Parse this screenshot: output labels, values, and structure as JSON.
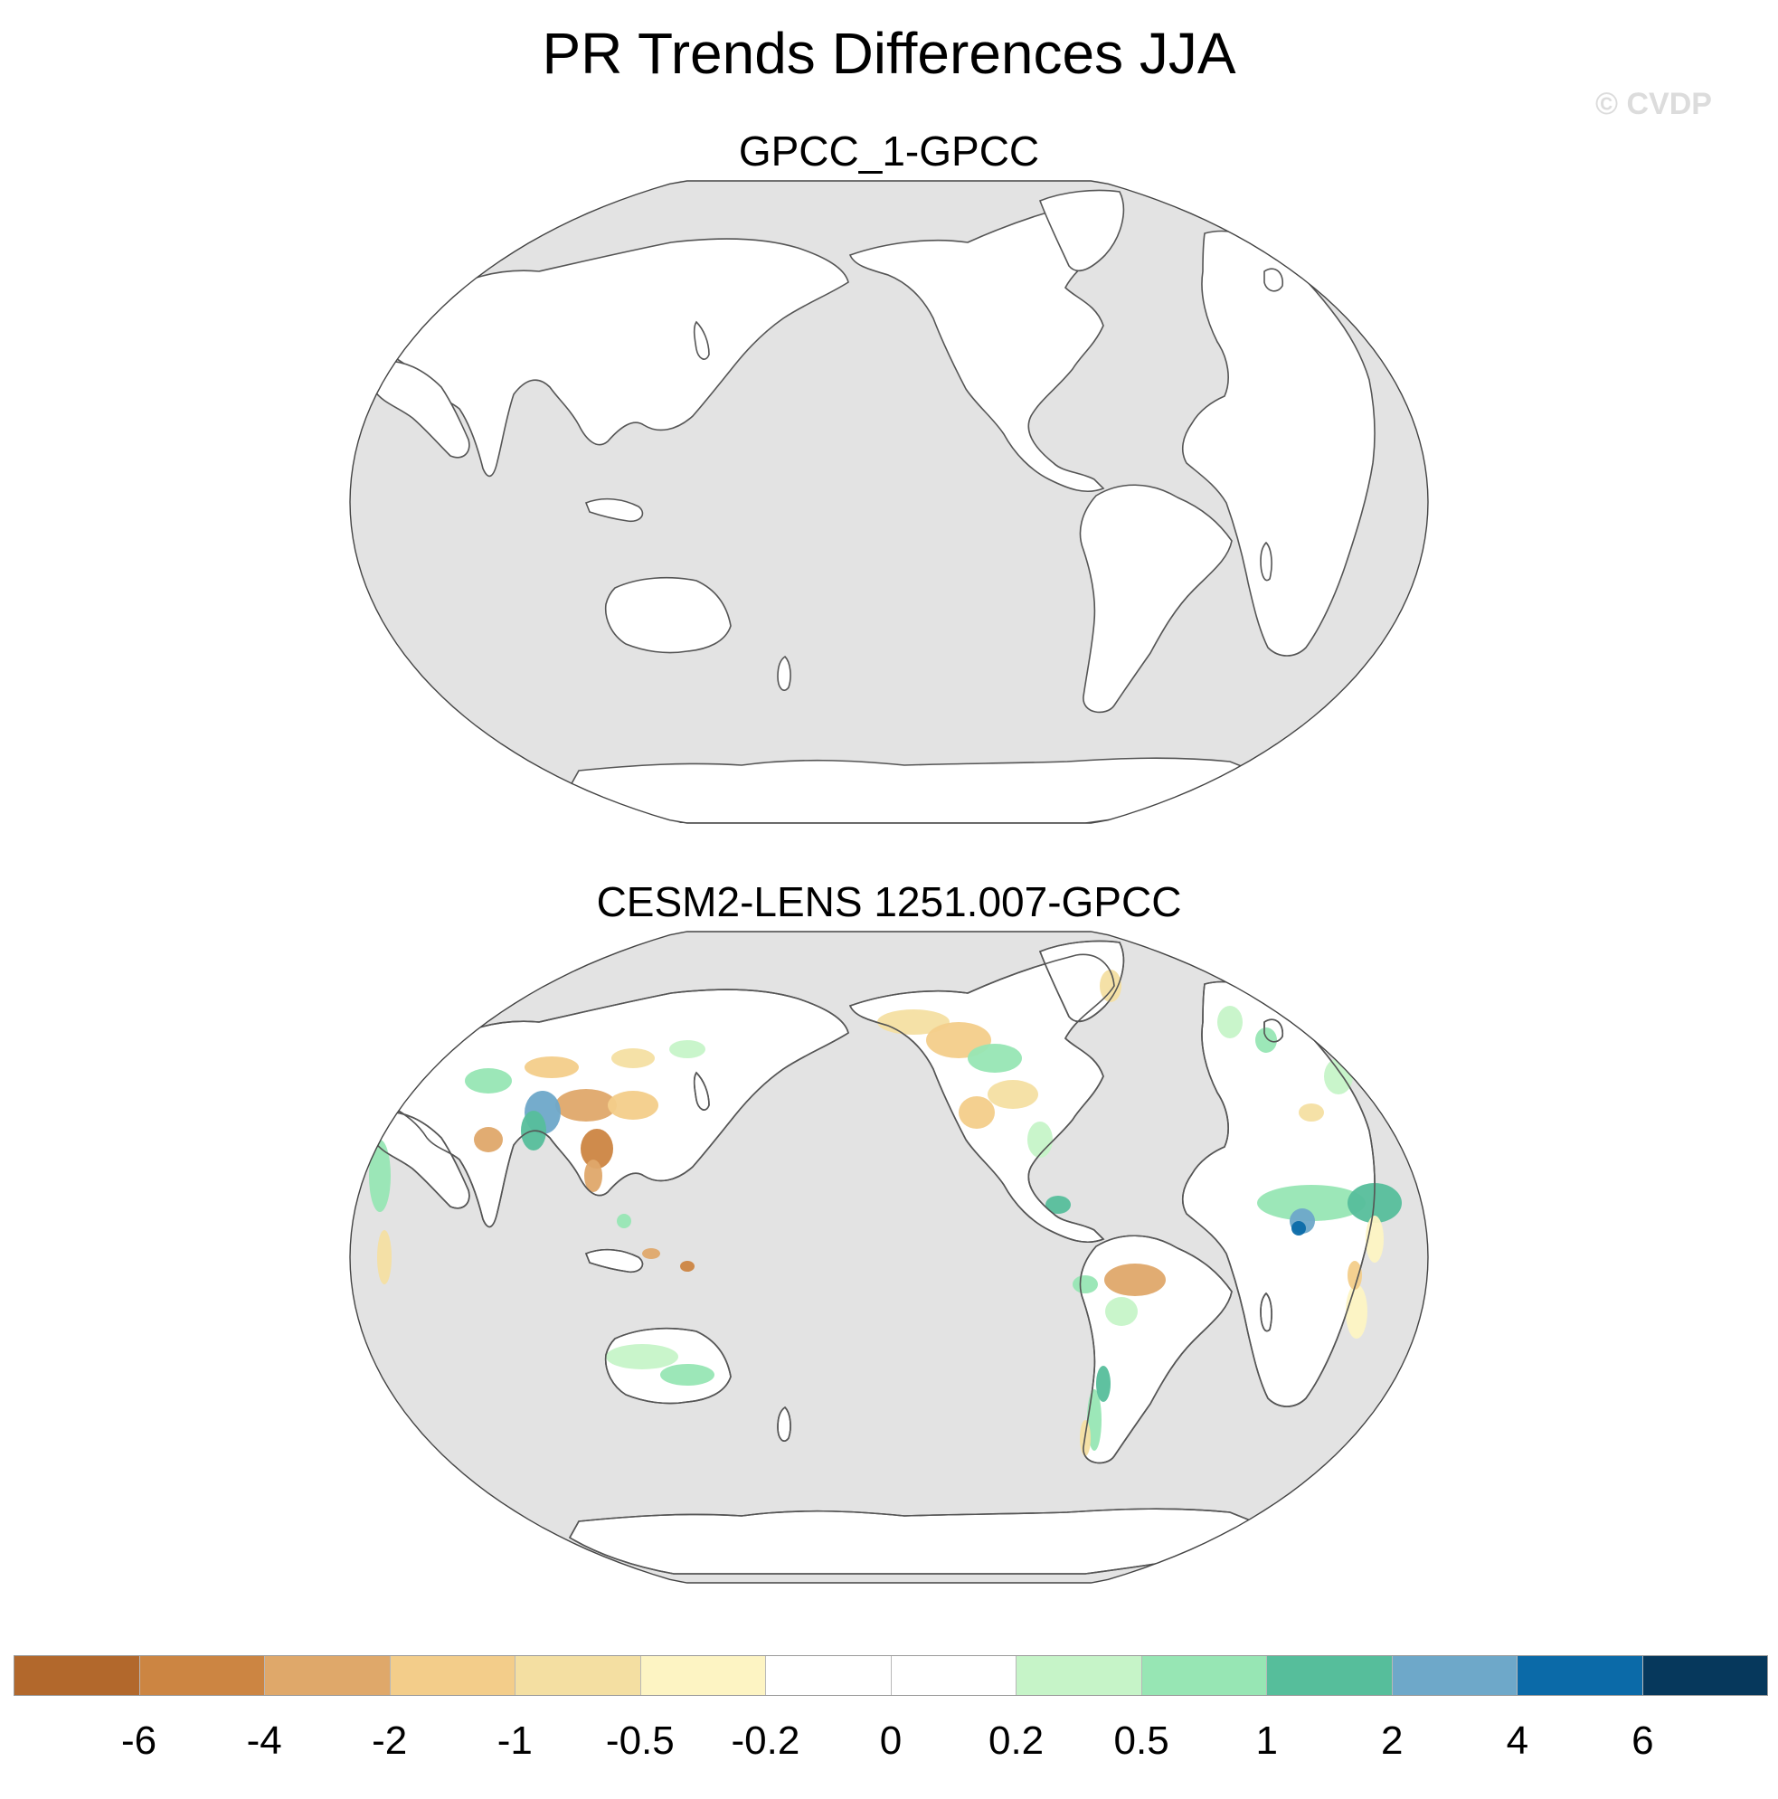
{
  "title": "PR Trends Differences JJA",
  "watermark": "© CVDP",
  "panels": [
    {
      "title": "GPCC_1-GPCC",
      "field": "zero-difference (all land 0)"
    },
    {
      "title": "CESM2-LENS 1251.007-GPCC",
      "field": "trend differences over land"
    }
  ],
  "colorbar": {
    "labels": [
      "-6",
      "-4",
      "-2",
      "-1",
      "-0.5",
      "-0.2",
      "0",
      "0.2",
      "0.5",
      "1",
      "2",
      "4",
      "6"
    ],
    "colors": [
      "#b2682c",
      "#cc8542",
      "#dfa86a",
      "#f3cd8a",
      "#f4dfa2",
      "#fdf4c3",
      "#ffffff",
      "#ffffff",
      "#c6f4c8",
      "#97e6b4",
      "#56be9b",
      "#6ea8c9",
      "#0b6aa8",
      "#06385c"
    ]
  },
  "colors": {
    "ocean": "#e3e3e3",
    "land": "#ffffff",
    "coast": "#555555"
  },
  "chart_data": {
    "type": "heatmap",
    "projection": "Robinson-like, centered on the Pacific",
    "variable": "PR trend differences, JJA",
    "contour_levels": [
      -6,
      -4,
      -2,
      -1,
      -0.5,
      -0.2,
      0,
      0.2,
      0.5,
      1,
      2,
      4,
      6
    ]
  }
}
